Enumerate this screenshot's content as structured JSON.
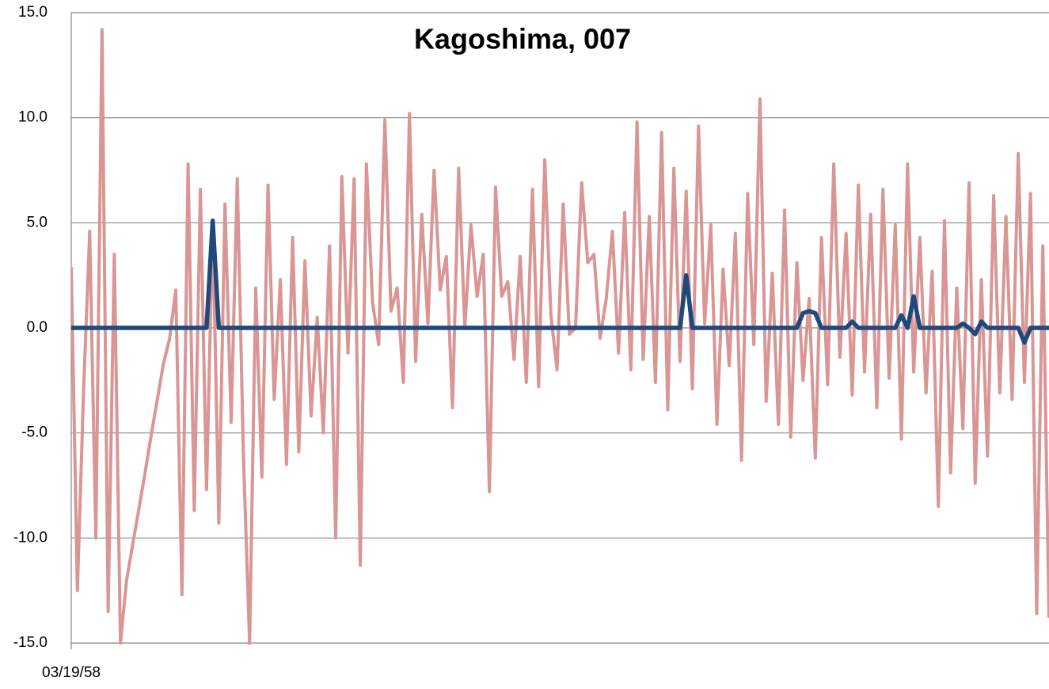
{
  "chart_data": {
    "type": "line",
    "title": "Kagoshima, 007",
    "categories": [
      "03/19/58",
      null,
      null,
      null,
      null,
      null,
      null,
      null,
      null,
      null,
      null,
      null,
      null,
      null,
      null,
      null,
      null,
      null,
      null,
      null,
      null,
      null,
      null,
      null,
      null,
      null,
      null,
      null,
      null,
      null,
      null,
      null,
      null,
      null,
      null,
      null,
      null,
      null,
      null,
      null,
      null,
      null,
      null,
      null,
      null,
      null,
      null,
      null,
      null,
      null,
      null,
      null,
      null,
      null,
      null,
      null,
      null,
      null,
      null,
      null,
      null,
      null,
      null,
      null,
      null,
      null,
      null,
      null,
      null,
      null,
      null,
      null,
      null,
      null,
      null,
      null,
      null,
      null,
      null,
      null,
      null,
      null,
      null,
      null,
      null,
      null,
      null,
      null,
      null,
      null,
      null,
      null,
      null,
      null,
      null,
      null,
      null,
      null,
      null,
      null,
      null,
      null,
      null,
      null,
      null,
      null,
      null,
      null,
      null,
      null,
      null,
      null,
      null,
      null,
      null,
      null,
      null,
      null,
      null,
      null,
      null,
      null,
      null,
      null,
      null,
      null,
      null,
      null,
      null,
      null,
      null,
      null,
      null,
      null,
      null,
      null,
      null,
      null,
      null,
      null,
      null,
      null,
      null,
      null,
      null,
      null,
      null,
      null,
      null,
      null,
      null,
      null,
      null,
      null,
      null,
      null,
      null,
      null,
      null,
      null
    ],
    "series": [
      {
        "color": "#d99694",
        "values": [
          2.9,
          -12.5,
          -3,
          4.6,
          -10,
          14.2,
          -13.5,
          3.5,
          -15,
          -12,
          -10.3,
          -8.6,
          -6.9,
          -5.1,
          -3.4,
          -1.7,
          -0.5,
          1.8,
          -12.7,
          7.8,
          -8.7,
          6.6,
          -7.7,
          5.1,
          -9.3,
          5.9,
          -4.5,
          7.1,
          -6.1,
          -15,
          1.9,
          -7.1,
          6.8,
          -3.4,
          2.3,
          -6.5,
          4.3,
          -5.9,
          3.2,
          -4.2,
          0.5,
          -5,
          3.9,
          -10,
          7.2,
          -1.2,
          7.1,
          -11.3,
          7.8,
          1.2,
          -0.8,
          9.9,
          0.8,
          1.9,
          -2.6,
          10.2,
          -1.6,
          5.4,
          0.2,
          7.5,
          1.8,
          3.4,
          -3.8,
          7.6,
          0,
          4.9,
          1.5,
          3.5,
          -7.8,
          6.7,
          1.5,
          2.2,
          -1.5,
          3.4,
          -2.6,
          6.6,
          -2.8,
          8,
          0.6,
          -2,
          5.9,
          -0.3,
          0,
          6.9,
          3.1,
          3.5,
          -0.5,
          1.4,
          4.6,
          -1.2,
          5.5,
          -2,
          9.8,
          -1.5,
          5.3,
          -2.6,
          9.3,
          -3.9,
          7.6,
          -1.6,
          6.5,
          -2.9,
          9.6,
          0.2,
          4.9,
          -4.6,
          2.8,
          -1.8,
          4.5,
          -6.3,
          6.4,
          -0.8,
          10.9,
          -3.5,
          2.6,
          -4.6,
          5.6,
          -5.2,
          3.1,
          -2.5,
          1.4,
          -6.2,
          4.3,
          -2.7,
          7.8,
          -1.4,
          4.5,
          -3.2,
          6.8,
          -2.1,
          5.4,
          -3.8,
          6.6,
          -2.4,
          4.9,
          -5.3,
          7.8,
          -2.1,
          4.3,
          -3.1,
          2.7,
          -8.5,
          5.1,
          -6.9,
          1.9,
          -4.8,
          6.9,
          -7.4,
          2.3,
          -6.1,
          6.3,
          -3.1,
          5.3,
          -3.4,
          8.3,
          -2.6,
          6.4,
          -13.6,
          3.9,
          -13.8
        ]
      },
      {
        "color": "#1f497d",
        "values": [
          0,
          0,
          0,
          0,
          0,
          0,
          0,
          0,
          0,
          0,
          0,
          0,
          0,
          0,
          0,
          0,
          0,
          0,
          0,
          0,
          0,
          0,
          0,
          5.1,
          0,
          0,
          0,
          0,
          0,
          0,
          0,
          0,
          0,
          0,
          0,
          0,
          0,
          0,
          0,
          0,
          0,
          0,
          0,
          0,
          0,
          0,
          0,
          0,
          0,
          0,
          0,
          0,
          0,
          0,
          0,
          0,
          0,
          0,
          0,
          0,
          0,
          0,
          0,
          0,
          0,
          0,
          0,
          0,
          0,
          0,
          0,
          0,
          0,
          0,
          0,
          0,
          0,
          0,
          0,
          0,
          0,
          0,
          0,
          0,
          0,
          0,
          0,
          0,
          0,
          0,
          0,
          0,
          0,
          0,
          0,
          0,
          0,
          0,
          0,
          0,
          2.5,
          0,
          0,
          0,
          0,
          0,
          0,
          0,
          0,
          0,
          0,
          0,
          0,
          0,
          0,
          0,
          0,
          0,
          0,
          0.7,
          0.8,
          0.7,
          0,
          0,
          0,
          0,
          0,
          0.3,
          0,
          0,
          0,
          0,
          0,
          0,
          0,
          0.6,
          0,
          1.5,
          0,
          0,
          0,
          0,
          0,
          0,
          0,
          0.2,
          0,
          -0.3,
          0.3,
          0,
          0,
          0,
          0,
          0,
          0,
          -0.7,
          0,
          0,
          0,
          0
        ]
      }
    ],
    "ylim": [
      -15,
      15
    ],
    "yticks": [
      {
        "value": -15,
        "label": "-15.0"
      },
      {
        "value": -10,
        "label": "-10.0"
      },
      {
        "value": -5,
        "label": "-5.0"
      },
      {
        "value": 0,
        "label": "0.0"
      },
      {
        "value": 5,
        "label": "5.0"
      },
      {
        "value": 10,
        "label": "10.0"
      },
      {
        "value": 15,
        "label": "15.0"
      }
    ],
    "grid": true
  }
}
